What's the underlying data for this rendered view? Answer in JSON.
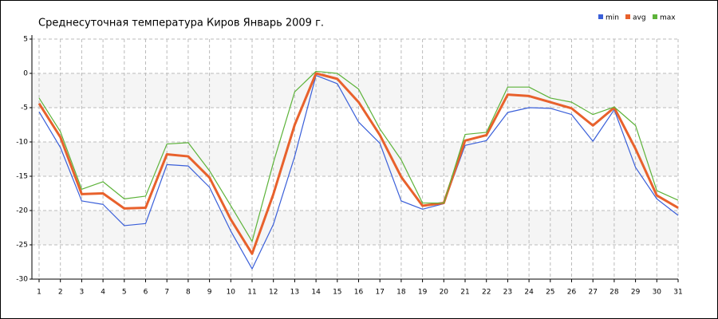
{
  "chart_data": {
    "type": "line",
    "title": "Среднесуточная температура Киров Январь 2009 г.",
    "categories": [
      "1",
      "2",
      "3",
      "4",
      "5",
      "6",
      "7",
      "8",
      "9",
      "10",
      "11",
      "12",
      "13",
      "14",
      "15",
      "16",
      "17",
      "18",
      "19",
      "20",
      "21",
      "22",
      "23",
      "24",
      "25",
      "26",
      "27",
      "28",
      "29",
      "30",
      "31"
    ],
    "series": [
      {
        "name": "min",
        "color": "#3a5fd9",
        "values": [
          -5.6,
          -10.8,
          -18.6,
          -19.1,
          -22.2,
          -21.9,
          -13.3,
          -13.5,
          -16.6,
          -23,
          -28.5,
          -22,
          -12.1,
          -0.3,
          -1.5,
          -7.1,
          -10.2,
          -18.6,
          -19.8,
          -19,
          -10.5,
          -9.8,
          -5.7,
          -5,
          -5.1,
          -6,
          -9.9,
          -5.3,
          -13.7,
          -18.3,
          -20.7
        ]
      },
      {
        "name": "avg",
        "color": "#e8612c",
        "values": [
          -4.4,
          -9.3,
          -17.6,
          -17.5,
          -19.7,
          -19.6,
          -11.8,
          -12.1,
          -15.2,
          -21.3,
          -26.3,
          -17.6,
          -7.5,
          0,
          -0.8,
          -4.2,
          -9,
          -15.1,
          -19.3,
          -18.9,
          -9.8,
          -9,
          -3.1,
          -3.3,
          -4.2,
          -5.1,
          -7.6,
          -5,
          -11,
          -17.8,
          -19.6
        ]
      },
      {
        "name": "max",
        "color": "#5db33a",
        "values": [
          -3.6,
          -8.5,
          -16.9,
          -15.8,
          -18.3,
          -17.9,
          -10.3,
          -10.1,
          -14.2,
          -19.3,
          -24.5,
          -13,
          -2.7,
          0.3,
          0,
          -2.3,
          -8.1,
          -12.6,
          -18.9,
          -18.9,
          -8.9,
          -8.6,
          -2,
          -2,
          -3.6,
          -4.2,
          -6,
          -4.9,
          -7.6,
          -17.1,
          -18.5
        ]
      }
    ],
    "ylim": [
      -30,
      5
    ],
    "yticks": [
      5,
      0,
      -5,
      -10,
      -15,
      -20,
      -25,
      -30
    ],
    "grid": true,
    "legend": "top-right"
  }
}
